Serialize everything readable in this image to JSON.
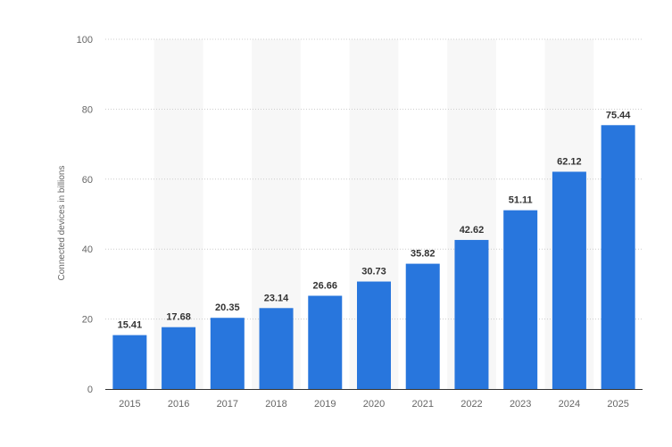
{
  "chart_data": {
    "type": "bar",
    "title": "",
    "xlabel": "",
    "ylabel": "Connected devices in billions",
    "categories": [
      "2015",
      "2016",
      "2017",
      "2018",
      "2019",
      "2020",
      "2021",
      "2022",
      "2023",
      "2024",
      "2025"
    ],
    "values": [
      15.41,
      17.68,
      20.35,
      23.14,
      26.66,
      30.73,
      35.82,
      42.62,
      51.11,
      62.12,
      75.44
    ],
    "value_labels": [
      "15.41",
      "17.68",
      "20.35",
      "23.14",
      "26.66",
      "30.73",
      "35.82",
      "42.62",
      "51.11",
      "62.12",
      "75.44"
    ],
    "ylim": [
      0,
      100
    ],
    "yticks": [
      "0",
      "20",
      "40",
      "60",
      "80",
      "100"
    ],
    "grid": true,
    "bar_color": "#2876dd",
    "alt_band_color": "#f7f7f7",
    "grid_color": "#cccccc",
    "axis_color": "#333333"
  }
}
